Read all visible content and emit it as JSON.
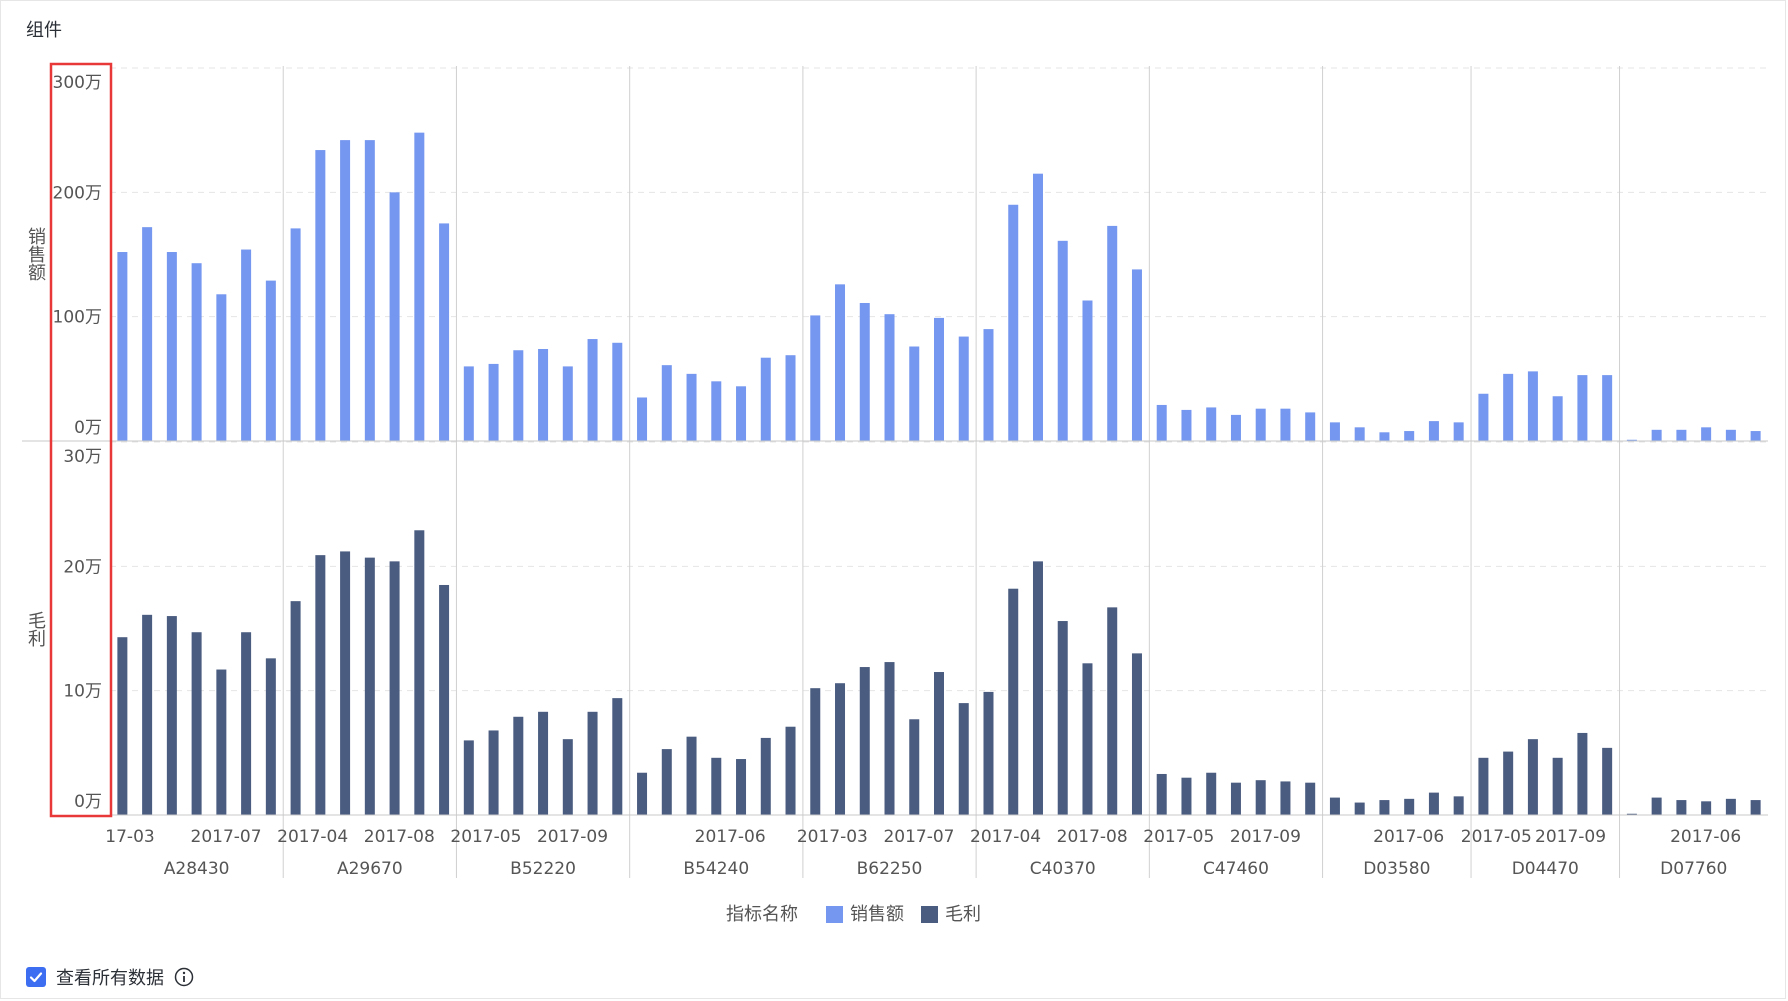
{
  "component": {
    "title": "组件"
  },
  "footer": {
    "view_all_label": "查看所有数据",
    "view_all_checked": true
  },
  "colors": {
    "sales": "#7597ef",
    "profit": "#4a5c80",
    "highlight": "#e83838",
    "accent": "#3d6ef2"
  },
  "chart_data": {
    "type": "bar",
    "legend": {
      "title": "指标名称",
      "placement": "bottom-center"
    },
    "groups": [
      {
        "name": "A28430",
        "tick_labels": [
          "17-03",
          "2017-07"
        ]
      },
      {
        "name": "A29670",
        "tick_labels": [
          "2017-04",
          "2017-08"
        ]
      },
      {
        "name": "B52220",
        "tick_labels": [
          "2017-05",
          "2017-09"
        ]
      },
      {
        "name": "B54240",
        "tick_labels": [
          "2017-06"
        ]
      },
      {
        "name": "B62250",
        "tick_labels": [
          "2017-03",
          "2017-07"
        ]
      },
      {
        "name": "C40370",
        "tick_labels": [
          "2017-04",
          "2017-08"
        ]
      },
      {
        "name": "C47460",
        "tick_labels": [
          "2017-05",
          "2017-09"
        ]
      },
      {
        "name": "D03580",
        "tick_labels": [
          "2017-06"
        ]
      },
      {
        "name": "D04470",
        "tick_labels": [
          "2017-05",
          "2017-09"
        ]
      },
      {
        "name": "D07760",
        "tick_labels": [
          "2017-06"
        ]
      }
    ],
    "series": [
      {
        "name": "销售额",
        "axis_label": "销售额",
        "ticks": [
          "0万",
          "100万",
          "200万",
          "300万"
        ],
        "ylim": [
          0,
          3000000
        ],
        "values": [
          [
            1520000,
            1720000,
            1520000,
            1430000,
            1180000,
            1540000,
            1290000
          ],
          [
            1710000,
            2340000,
            2420000,
            2420000,
            2000000,
            2480000,
            1750000
          ],
          [
            600000,
            620000,
            730000,
            740000,
            600000,
            820000,
            790000
          ],
          [
            350000,
            610000,
            540000,
            480000,
            440000,
            670000,
            690000
          ],
          [
            1010000,
            1260000,
            1110000,
            1020000,
            760000,
            990000,
            840000
          ],
          [
            900000,
            1900000,
            2150000,
            1610000,
            1130000,
            1730000,
            1380000
          ],
          [
            290000,
            250000,
            270000,
            210000,
            260000,
            260000,
            230000
          ],
          [
            150000,
            110000,
            70000,
            80000,
            160000,
            150000
          ],
          [
            380000,
            540000,
            560000,
            360000,
            530000,
            530000
          ],
          [
            10000,
            90000,
            90000,
            110000,
            90000,
            80000
          ]
        ]
      },
      {
        "name": "毛利",
        "axis_label": "毛利",
        "ticks": [
          "0万",
          "10万",
          "20万",
          "30万"
        ],
        "ylim": [
          0,
          300000
        ],
        "values": [
          [
            143000,
            161000,
            160000,
            147000,
            117000,
            147000,
            126000
          ],
          [
            172000,
            209000,
            212000,
            207000,
            204000,
            229000,
            185000
          ],
          [
            60000,
            68000,
            79000,
            83000,
            61000,
            83000,
            94000
          ],
          [
            34000,
            53000,
            63000,
            46000,
            45000,
            62000,
            71000
          ],
          [
            102000,
            106000,
            119000,
            123000,
            77000,
            115000,
            90000
          ],
          [
            99000,
            182000,
            204000,
            156000,
            122000,
            167000,
            130000
          ],
          [
            33000,
            30000,
            34000,
            26000,
            28000,
            27000,
            26000
          ],
          [
            14000,
            10000,
            12000,
            13000,
            18000,
            15000
          ],
          [
            46000,
            51000,
            61000,
            46000,
            66000,
            54000
          ],
          [
            1000,
            14000,
            12000,
            11000,
            13000,
            12000
          ]
        ]
      }
    ]
  }
}
